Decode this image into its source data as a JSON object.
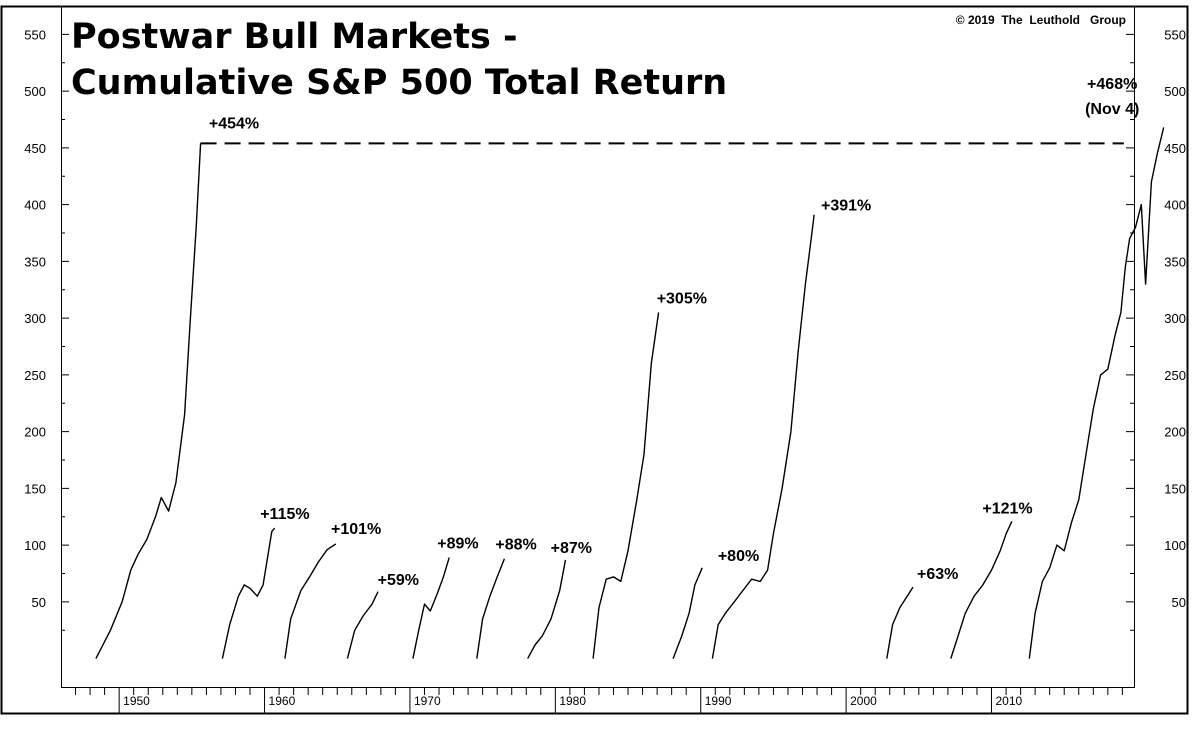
{
  "chart_data": {
    "type": "line",
    "title": "Postwar Bull Markets -",
    "subtitle": "Cumulative S&P 500 Total Return",
    "source": "© 2019  The  Leuthold   Group",
    "xlabel": "",
    "ylabel": "",
    "ylim": [
      -25,
      575
    ],
    "xlim": [
      1946.0,
      2019.8
    ],
    "y_ticks": [
      50,
      100,
      150,
      200,
      250,
      300,
      350,
      400,
      450,
      500,
      550
    ],
    "y_tick_labels": [
      "50",
      "100",
      "150",
      "200",
      "250",
      "300",
      "350",
      "400",
      "450",
      "500",
      "550"
    ],
    "x_ticks": [
      1950,
      1960,
      1970,
      1980,
      1990,
      2000,
      2010
    ],
    "x_tick_labels": [
      "1950",
      "1960",
      "1970",
      "1980",
      "1990",
      "2000",
      "2010"
    ],
    "grid": false,
    "reference_line": {
      "y": 454,
      "x_start": 1955.6,
      "x_end": 2019.1,
      "style": "dashed"
    },
    "series": [
      {
        "start": 1948.4,
        "points": [
          [
            1948.4,
            0
          ],
          [
            1949.4,
            25
          ],
          [
            1950.2,
            50
          ],
          [
            1950.8,
            78
          ],
          [
            1951.3,
            92
          ],
          [
            1951.9,
            105
          ],
          [
            1952.5,
            125
          ],
          [
            1952.9,
            142
          ],
          [
            1953.4,
            130
          ],
          [
            1953.9,
            155
          ],
          [
            1954.5,
            215
          ],
          [
            1954.9,
            300
          ],
          [
            1955.3,
            380
          ],
          [
            1955.6,
            454
          ]
        ]
      },
      {
        "start": 1957.1,
        "points": [
          [
            1957.1,
            0
          ],
          [
            1957.6,
            30
          ],
          [
            1958.2,
            55
          ],
          [
            1958.6,
            65
          ],
          [
            1959.0,
            62
          ],
          [
            1959.5,
            55
          ],
          [
            1959.9,
            65
          ],
          [
            1960.5,
            112
          ],
          [
            1960.7,
            115
          ]
        ]
      },
      {
        "start": 1961.4,
        "points": [
          [
            1961.4,
            0
          ],
          [
            1961.8,
            35
          ],
          [
            1962.5,
            60
          ],
          [
            1963.1,
            72
          ],
          [
            1963.7,
            85
          ],
          [
            1964.3,
            96
          ],
          [
            1964.9,
            101
          ]
        ]
      },
      {
        "start": 1965.7,
        "points": [
          [
            1965.7,
            0
          ],
          [
            1966.2,
            25
          ],
          [
            1966.8,
            38
          ],
          [
            1967.4,
            48
          ],
          [
            1967.8,
            59
          ]
        ]
      },
      {
        "start": 1970.2,
        "points": [
          [
            1970.2,
            0
          ],
          [
            1970.6,
            25
          ],
          [
            1971.0,
            48
          ],
          [
            1971.4,
            42
          ],
          [
            1971.9,
            58
          ],
          [
            1972.3,
            72
          ],
          [
            1972.7,
            89
          ]
        ]
      },
      {
        "start": 1974.6,
        "points": [
          [
            1974.6,
            0
          ],
          [
            1975.0,
            35
          ],
          [
            1975.5,
            55
          ],
          [
            1976.0,
            72
          ],
          [
            1976.5,
            88
          ]
        ]
      },
      {
        "start": 1978.1,
        "points": [
          [
            1978.1,
            0
          ],
          [
            1978.6,
            12
          ],
          [
            1979.1,
            20
          ],
          [
            1979.7,
            35
          ],
          [
            1980.3,
            60
          ],
          [
            1980.7,
            87
          ]
        ]
      },
      {
        "start": 1982.6,
        "points": [
          [
            1982.6,
            0
          ],
          [
            1983.0,
            45
          ],
          [
            1983.5,
            70
          ],
          [
            1984.0,
            72
          ],
          [
            1984.5,
            68
          ],
          [
            1985.0,
            95
          ],
          [
            1985.6,
            140
          ],
          [
            1986.1,
            180
          ],
          [
            1986.6,
            260
          ],
          [
            1987.1,
            305
          ]
        ]
      },
      {
        "start": 1988.1,
        "points": [
          [
            1988.1,
            0
          ],
          [
            1988.7,
            20
          ],
          [
            1989.2,
            40
          ],
          [
            1989.6,
            65
          ],
          [
            1990.1,
            80
          ]
        ]
      },
      {
        "start": 1990.8,
        "points": [
          [
            1990.8,
            0
          ],
          [
            1991.2,
            30
          ],
          [
            1991.7,
            40
          ],
          [
            1992.3,
            50
          ],
          [
            1992.9,
            60
          ],
          [
            1993.5,
            70
          ],
          [
            1994.1,
            68
          ],
          [
            1994.6,
            78
          ],
          [
            1995.0,
            110
          ],
          [
            1995.6,
            150
          ],
          [
            1996.2,
            200
          ],
          [
            1996.7,
            270
          ],
          [
            1997.2,
            330
          ],
          [
            1997.6,
            370
          ],
          [
            1997.8,
            391
          ]
        ]
      },
      {
        "start": 2002.8,
        "points": [
          [
            2002.8,
            0
          ],
          [
            2003.2,
            30
          ],
          [
            2003.7,
            45
          ],
          [
            2004.2,
            55
          ],
          [
            2004.6,
            63
          ]
        ]
      },
      {
        "start": 2007.2,
        "points": [
          [
            2007.2,
            0
          ],
          [
            2007.7,
            20
          ],
          [
            2008.2,
            40
          ],
          [
            2008.8,
            55
          ],
          [
            2009.4,
            65
          ],
          [
            2010.0,
            78
          ],
          [
            2010.6,
            95
          ],
          [
            2011.0,
            110
          ],
          [
            2011.4,
            121
          ]
        ]
      },
      {
        "start": 2012.6,
        "points": [
          [
            2012.6,
            0
          ],
          [
            2013.0,
            40
          ],
          [
            2013.5,
            68
          ],
          [
            2014.0,
            80
          ],
          [
            2014.5,
            100
          ],
          [
            2015.0,
            95
          ],
          [
            2015.5,
            120
          ],
          [
            2016.0,
            140
          ],
          [
            2016.5,
            180
          ],
          [
            2017.0,
            220
          ],
          [
            2017.5,
            250
          ],
          [
            2018.0,
            255
          ],
          [
            2018.5,
            285
          ],
          [
            2018.9,
            305
          ],
          [
            2019.2,
            345
          ],
          [
            2019.5,
            370
          ],
          [
            2019.9,
            380
          ],
          [
            2020.3,
            400
          ],
          [
            2020.6,
            330
          ],
          [
            2021.0,
            420
          ],
          [
            2021.4,
            445
          ],
          [
            2021.84,
            468
          ]
        ]
      }
    ],
    "peak_labels": [
      {
        "text": "+454%",
        "x": 1957.9,
        "y": 467
      },
      {
        "text": "+115%",
        "x": 1961.4,
        "y": 123
      },
      {
        "text": "+101%",
        "x": 1966.3,
        "y": 110
      },
      {
        "text": "+59%",
        "x": 1969.2,
        "y": 65
      },
      {
        "text": "+89%",
        "x": 1973.3,
        "y": 97
      },
      {
        "text": "+88%",
        "x": 1977.3,
        "y": 96
      },
      {
        "text": "+87%",
        "x": 1981.1,
        "y": 93
      },
      {
        "text": "+305%",
        "x": 1988.7,
        "y": 313
      },
      {
        "text": "+80%",
        "x": 1992.6,
        "y": 86
      },
      {
        "text": "+391%",
        "x": 2000.0,
        "y": 395
      },
      {
        "text": "+63%",
        "x": 2006.3,
        "y": 70
      },
      {
        "text": "+121%",
        "x": 2011.1,
        "y": 128
      },
      {
        "text": "+468%",
        "x": 2018.3,
        "y": 502
      },
      {
        "text": "(Nov 4)",
        "x": 2018.3,
        "y": 480
      }
    ]
  }
}
